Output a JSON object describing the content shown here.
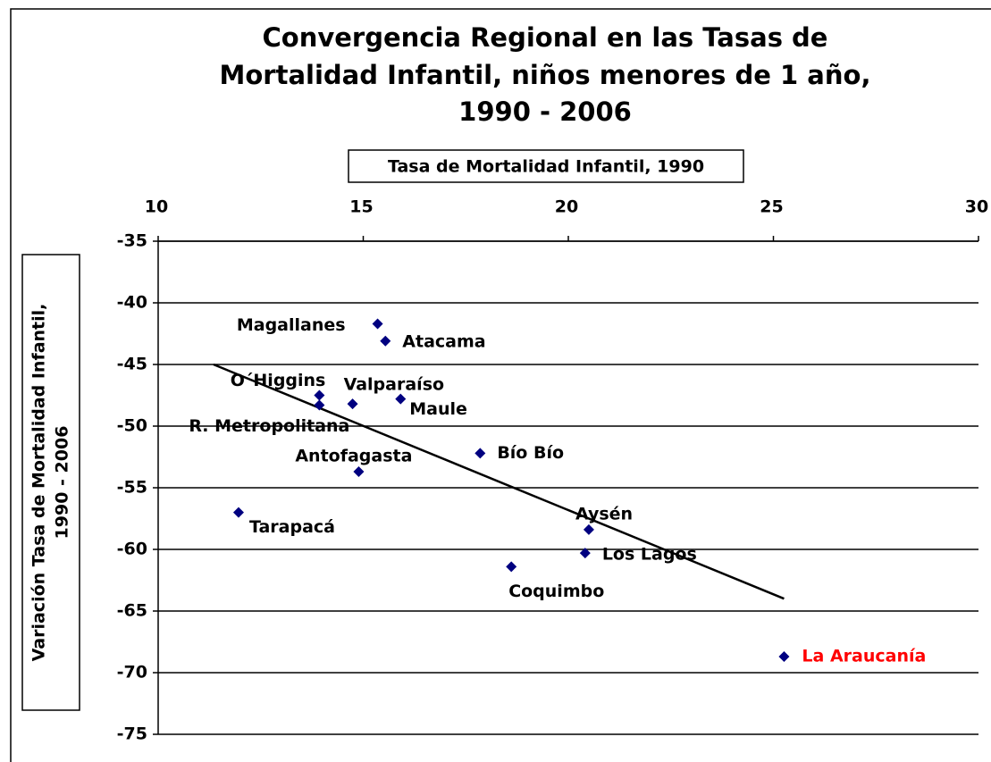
{
  "chart_data": {
    "type": "scatter",
    "title": [
      "Convergencia Regional en las Tasas de",
      "Mortalidad Infantil, niños menores de 1 año,",
      "1990 - 2006"
    ],
    "x_label": "Tasa de Mortalidad Infantil, 1990",
    "y_label": [
      "Variación Tasa de Mortalidad Infantil,",
      "1990 - 2006"
    ],
    "point_labels": [
      "Magallanes",
      "Atacama",
      "O´Higgins",
      "R. Metropolitana",
      "Valparaíso",
      "Maule",
      "Antofagasta",
      "Bío Bío",
      "Tarapacá",
      "Aysén",
      "Los Lagos",
      "Coquimbo",
      "La Araucanía"
    ],
    "x": [
      15.35,
      15.54,
      13.93,
      13.93,
      14.74,
      15.91,
      14.89,
      17.85,
      11.96,
      20.5,
      20.41,
      18.61,
      25.26
    ],
    "values": [
      -41.7,
      -43.1,
      -47.5,
      -48.3,
      -48.2,
      -47.8,
      -53.7,
      -52.2,
      -57.0,
      -58.4,
      -60.3,
      -61.4,
      -68.7
    ],
    "color": "#000080",
    "label_colors": [
      "#000000",
      "#000000",
      "#000000",
      "#000000",
      "#000000",
      "#000000",
      "#000000",
      "#000000",
      "#000000",
      "#000000",
      "#000000",
      "#000000",
      "#ff0000"
    ],
    "trendline": {
      "x": [
        11.35,
        25.26
      ],
      "values": [
        -45.0,
        -64.0
      ]
    },
    "xlim": [
      10,
      30
    ],
    "xticks": [
      10,
      15,
      20,
      25,
      30
    ],
    "ylim": [
      -75,
      -35
    ],
    "yticks": [
      -35,
      -40,
      -45,
      -50,
      -55,
      -60,
      -65,
      -70,
      -75
    ],
    "grid": true
  }
}
